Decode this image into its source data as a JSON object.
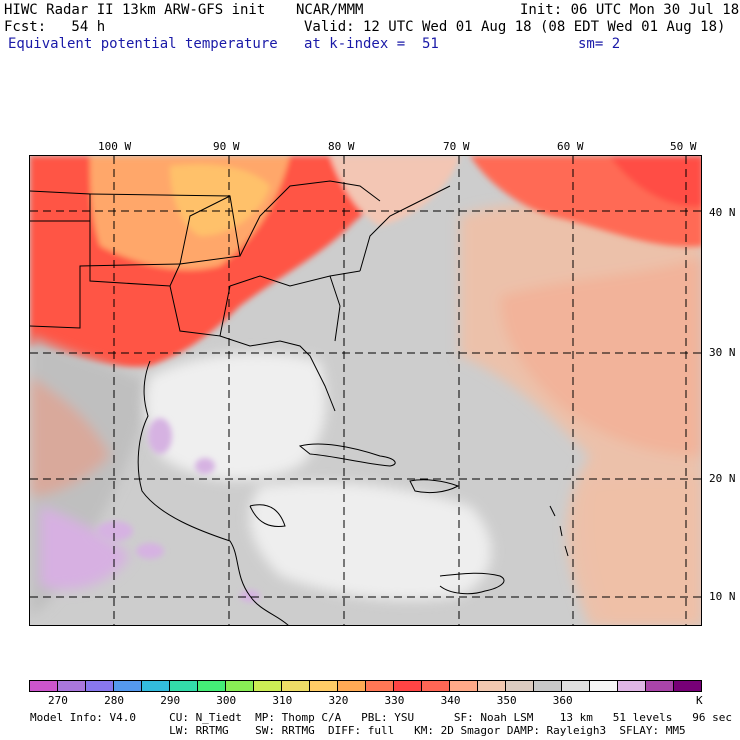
{
  "header": {
    "line1_left": "HIWC Radar II 13km ARW-GFS init",
    "line1_mid": "NCAR/MMM",
    "line1_right": "Init: 06 UTC Mon 30 Jul 18",
    "line2_left": "Fcst:   54 h",
    "line2_right": "Valid: 12 UTC Wed 01 Aug 18 (08 EDT Wed 01 Aug 18)",
    "field_name": "Equivalent potential temperature",
    "level": "at k-index =  51",
    "smoothing": "sm= 2"
  },
  "map": {
    "lon_labels": [
      "100 W",
      "90 W",
      "80 W",
      "70 W",
      "60 W",
      "50 W"
    ],
    "lat_labels": [
      "40 N",
      "30 N",
      "20 N",
      "10 N"
    ]
  },
  "colorbar": {
    "colors": [
      "#cc55cc",
      "#aa77dd",
      "#8877ee",
      "#5599ee",
      "#33bbdd",
      "#33ddaa",
      "#44ee77",
      "#88ee55",
      "#ccee55",
      "#eedd66",
      "#ffcc66",
      "#ffaa55",
      "#ff7755",
      "#ff4444",
      "#ff6655",
      "#ffaa88",
      "#f2c8b0",
      "#dccbc0",
      "#c8c8c8",
      "#e0e0e0",
      "#f6f6f6",
      "#e0b6e6",
      "#aa44aa",
      "#770077"
    ],
    "labels": [
      "270",
      "280",
      "290",
      "300",
      "310",
      "320",
      "330",
      "340",
      "350",
      "360"
    ],
    "unit": "K"
  },
  "footer": {
    "line1": "Model Info: V4.0     CU: N_Tiedt  MP: Thomp C/A   PBL: YSU      SF: Noah LSM    13 km   51 levels   96 sec",
    "line2": "                     LW: RRTMG    SW: RRTMG  DIFF: full   KM: 2D Smagor DAMP: Rayleigh3  SFLAY: MM5"
  }
}
